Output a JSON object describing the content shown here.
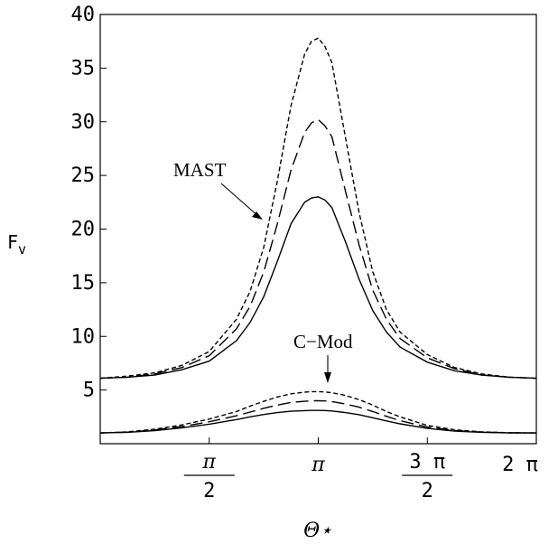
{
  "chart_data": {
    "type": "line",
    "xlabel": "Θ⋆",
    "ylabel": "F_v",
    "ylabel_main": "F",
    "ylabel_sub": "v",
    "xlim": [
      0,
      6.2832
    ],
    "ylim": [
      0,
      40
    ],
    "y_ticks": [
      {
        "value": 5,
        "label": "5"
      },
      {
        "value": 10,
        "label": "10"
      },
      {
        "value": 15,
        "label": "15"
      },
      {
        "value": 20,
        "label": "20"
      },
      {
        "value": 25,
        "label": "25"
      },
      {
        "value": 30,
        "label": "30"
      },
      {
        "value": 35,
        "label": "35"
      },
      {
        "value": 40,
        "label": "40"
      }
    ],
    "x_ticks": [
      {
        "value": 1.5708,
        "numerator": "π",
        "denominator": "2",
        "label": "π/2"
      },
      {
        "value": 3.1416,
        "label": "π"
      },
      {
        "value": 4.7124,
        "numerator": "3 π",
        "denominator": "2",
        "label": "3 π/2"
      },
      {
        "value": 6.2832,
        "label": "2 π"
      }
    ],
    "annotations": [
      {
        "text": "MAST",
        "target_x": 2.3,
        "target_y": 21.5
      },
      {
        "text": "C−Mod",
        "target_x": 3.14,
        "target_y": 4.3
      }
    ],
    "x": [
      0,
      0.3927,
      0.7854,
      1.1781,
      1.5708,
      1.9635,
      2.1598,
      2.3562,
      2.5525,
      2.7489,
      2.9452,
      3.0434,
      3.1416,
      3.2398,
      3.3379,
      3.5343,
      3.7306,
      3.927,
      4.1233,
      4.3197,
      4.7124,
      5.1051,
      5.4978,
      5.8905,
      6.2832
    ],
    "series": [
      {
        "group": "MAST",
        "style": "dashed-short",
        "values": [
          6.1,
          6.3,
          6.6,
          7.3,
          8.6,
          11.6,
          14.2,
          18.3,
          24.5,
          31.5,
          36.3,
          37.5,
          37.8,
          37.0,
          35.5,
          28.5,
          21.5,
          16.0,
          12.5,
          10.4,
          8.3,
          7.1,
          6.5,
          6.2,
          6.1
        ]
      },
      {
        "group": "MAST",
        "style": "dashed-long",
        "values": [
          6.1,
          6.2,
          6.5,
          7.1,
          8.2,
          10.7,
          12.8,
          16.0,
          20.5,
          25.5,
          29.0,
          29.9,
          30.2,
          29.6,
          28.6,
          23.5,
          18.5,
          14.3,
          11.6,
          9.8,
          8.0,
          7.0,
          6.4,
          6.2,
          6.1
        ]
      },
      {
        "group": "MAST",
        "style": "solid",
        "values": [
          6.1,
          6.2,
          6.4,
          6.9,
          7.7,
          9.6,
          11.3,
          13.7,
          17.0,
          20.5,
          22.5,
          22.9,
          23.0,
          22.7,
          22.0,
          18.8,
          15.3,
          12.4,
          10.4,
          9.0,
          7.6,
          6.8,
          6.4,
          6.2,
          6.1
        ]
      },
      {
        "group": "C-Mod",
        "style": "dashed-short",
        "values": [
          1.0,
          1.1,
          1.35,
          1.75,
          2.3,
          3.0,
          3.5,
          3.95,
          4.35,
          4.65,
          4.8,
          4.85,
          4.85,
          4.82,
          4.75,
          4.5,
          4.1,
          3.6,
          3.0,
          2.5,
          1.7,
          1.3,
          1.1,
          1.02,
          1.0
        ]
      },
      {
        "group": "C-Mod",
        "style": "dashed-long",
        "values": [
          1.0,
          1.08,
          1.28,
          1.6,
          2.05,
          2.6,
          2.95,
          3.3,
          3.6,
          3.85,
          3.95,
          4.0,
          4.0,
          3.98,
          3.92,
          3.7,
          3.4,
          3.0,
          2.55,
          2.15,
          1.55,
          1.22,
          1.08,
          1.02,
          1.0
        ]
      },
      {
        "group": "C-Mod",
        "style": "solid",
        "values": [
          1.0,
          1.06,
          1.22,
          1.48,
          1.82,
          2.25,
          2.5,
          2.72,
          2.9,
          3.02,
          3.08,
          3.1,
          3.1,
          3.09,
          3.05,
          2.9,
          2.7,
          2.42,
          2.12,
          1.85,
          1.42,
          1.17,
          1.06,
          1.01,
          1.0
        ]
      }
    ]
  }
}
